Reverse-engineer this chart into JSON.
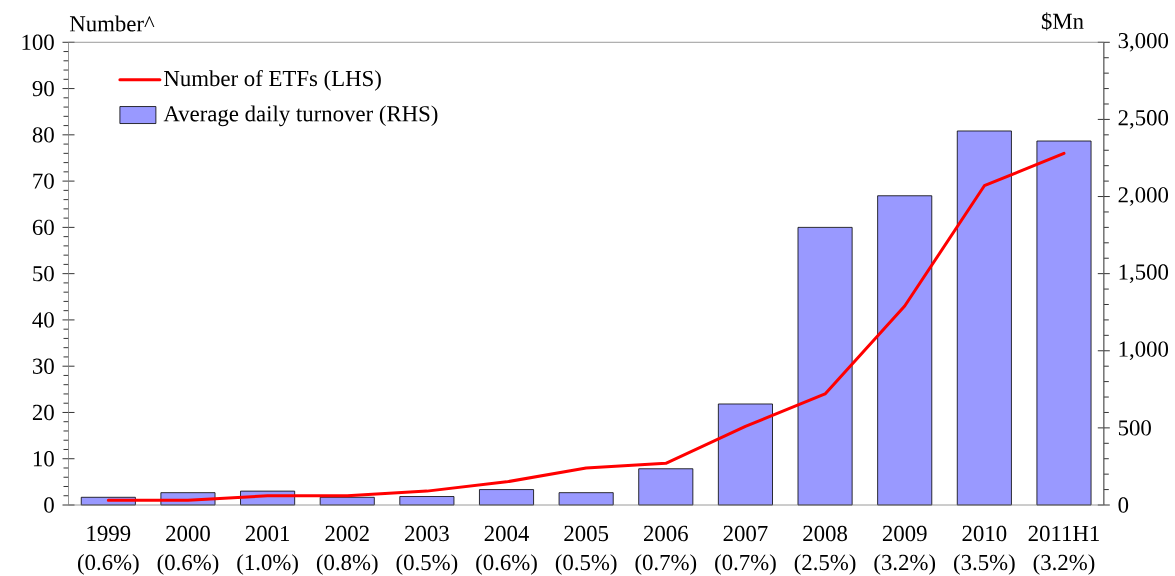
{
  "chart_data": {
    "type": "bar",
    "ylabel": "Number^",
    "y2label": "$Mn",
    "categories": [
      "1999 (0.6%)",
      "2000 (0.6%)",
      "2001 (1.0%)",
      "2002 (0.8%)",
      "2003 (0.5%)",
      "2004 (0.6%)",
      "2005 (0.5%)",
      "2006 (0.7%)",
      "2007 (0.7%)",
      "2008 (2.5%)",
      "2009 (3.2%)",
      "2010 (3.5%)",
      "2011H1 (3.2%)"
    ],
    "series": [
      {
        "name": "Number of ETFs (LHS)",
        "type": "line",
        "color": "#ff0000",
        "values": [
          1,
          1,
          2,
          2,
          3,
          5,
          8,
          9,
          17,
          24,
          43,
          69,
          76
        ]
      },
      {
        "name": "Average daily turnover (RHS)",
        "axis": "y2",
        "color": "#9999ff",
        "values": [
          50,
          80,
          90,
          50,
          55,
          100,
          80,
          235,
          655,
          1800,
          2005,
          2425,
          2360
        ]
      }
    ],
    "ylim": [
      0,
      100
    ],
    "yticks": [
      0,
      {
        "value": 2,
        "label": null
      },
      {
        "value": 4,
        "label": null
      },
      {
        "value": 6,
        "label": null
      },
      {
        "value": 8,
        "label": null
      },
      10,
      {
        "value": 12,
        "label": null
      },
      {
        "value": 14,
        "label": null
      },
      {
        "value": 16,
        "label": null
      },
      {
        "value": 18,
        "label": null
      },
      20,
      {
        "value": 22,
        "label": null
      },
      {
        "value": 24,
        "label": null
      },
      {
        "value": 26,
        "label": null
      },
      {
        "value": 28,
        "label": null
      },
      30,
      {
        "value": 32,
        "label": null
      },
      {
        "value": 34,
        "label": null
      },
      {
        "value": 36,
        "label": null
      },
      {
        "value": 38,
        "label": null
      },
      40,
      {
        "value": 42,
        "label": null
      },
      {
        "value": 44,
        "label": null
      },
      {
        "value": 46,
        "label": null
      },
      {
        "value": 48,
        "label": null
      },
      50,
      {
        "value": 52,
        "label": null
      },
      {
        "value": 54,
        "label": null
      },
      {
        "value": 56,
        "label": null
      },
      {
        "value": 58,
        "label": null
      },
      60,
      {
        "value": 62,
        "label": null
      },
      {
        "value": 64,
        "label": null
      },
      {
        "value": 66,
        "label": null
      },
      {
        "value": 68,
        "label": null
      },
      70,
      {
        "value": 72,
        "label": null
      },
      {
        "value": 74,
        "label": null
      },
      {
        "value": 76,
        "label": null
      },
      {
        "value": 78,
        "label": null
      },
      80,
      {
        "value": 82,
        "label": null
      },
      {
        "value": 84,
        "label": null
      },
      {
        "value": 86,
        "label": null
      },
      {
        "value": 88,
        "label": null
      },
      90,
      {
        "value": 92,
        "label": null
      },
      {
        "value": 94,
        "label": null
      },
      {
        "value": 96,
        "label": null
      },
      {
        "value": 98,
        "label": null
      },
      100
    ],
    "y2lim": [
      0,
      3000
    ],
    "y2ticks": [
      0,
      {
        "value": 100,
        "label": null
      },
      {
        "value": 200,
        "label": null
      },
      {
        "value": 300,
        "label": null
      },
      {
        "value": 400,
        "label": null
      },
      500,
      {
        "value": 600,
        "label": null
      },
      {
        "value": 700,
        "label": null
      },
      {
        "value": 800,
        "label": null
      },
      {
        "value": 900,
        "label": null
      },
      {
        "value": 1000,
        "label": "1,000"
      },
      {
        "value": 1100,
        "label": null
      },
      {
        "value": 1200,
        "label": null
      },
      {
        "value": 1300,
        "label": null
      },
      {
        "value": 1400,
        "label": null
      },
      {
        "value": 1500,
        "label": "1,500"
      },
      {
        "value": 1600,
        "label": null
      },
      {
        "value": 1700,
        "label": null
      },
      {
        "value": 1800,
        "label": null
      },
      {
        "value": 1900,
        "label": null
      },
      {
        "value": 2000,
        "label": "2,000"
      },
      {
        "value": 2100,
        "label": null
      },
      {
        "value": 2200,
        "label": null
      },
      {
        "value": 2300,
        "label": null
      },
      {
        "value": 2400,
        "label": null
      },
      {
        "value": 2500,
        "label": "2,500"
      },
      {
        "value": 2600,
        "label": null
      },
      {
        "value": 2700,
        "label": null
      },
      {
        "value": 2800,
        "label": null
      },
      {
        "value": 2900,
        "label": null
      },
      {
        "value": 3000,
        "label": "3,000"
      }
    ],
    "legend": "top left"
  }
}
